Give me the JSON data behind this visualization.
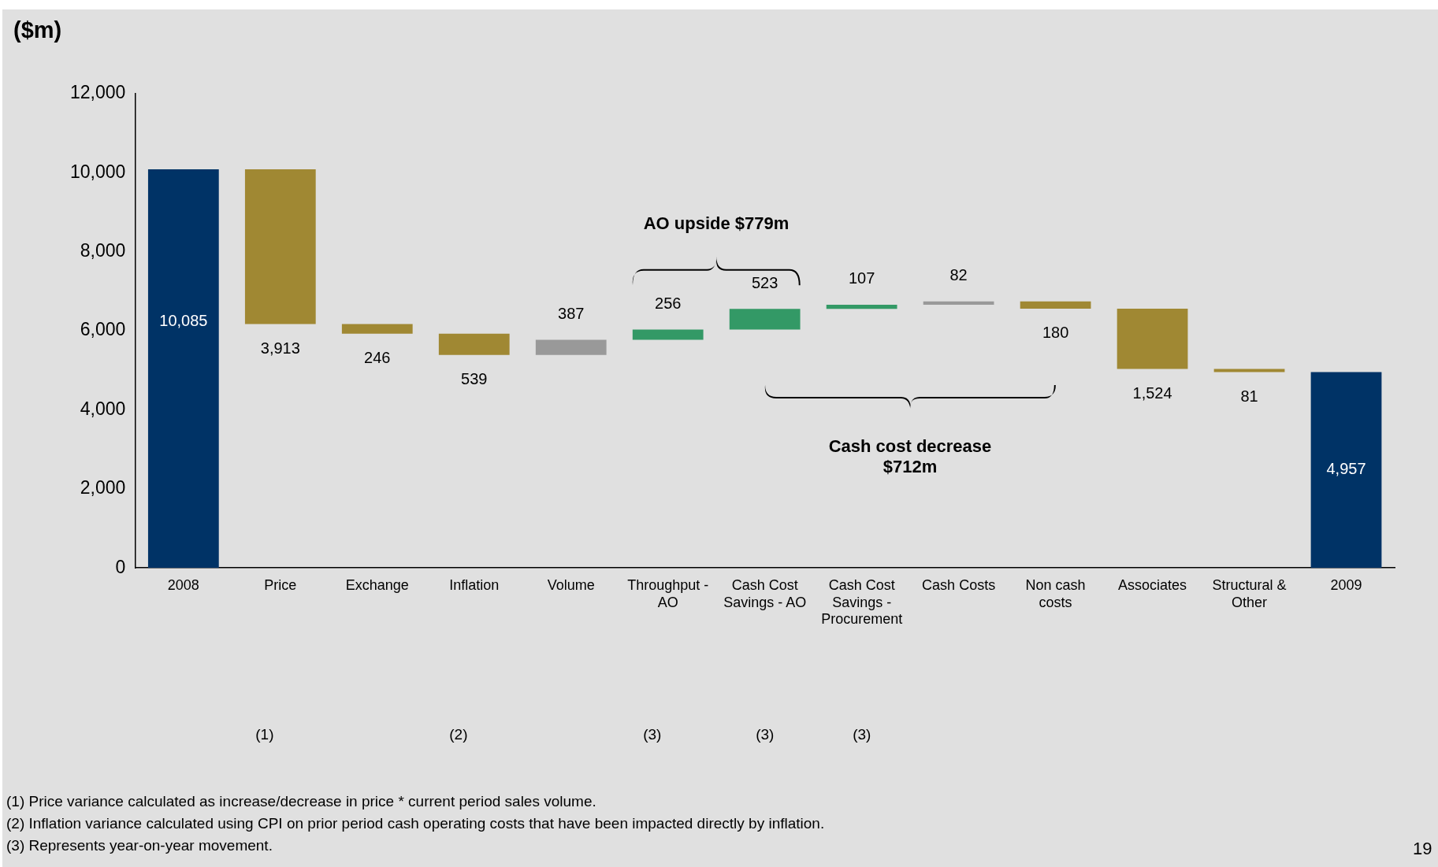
{
  "chart_data": {
    "type": "bar",
    "title": "($m)",
    "categories": [
      "2008",
      "Price",
      "Exchange",
      "Inflation",
      "Volume",
      "Throughput - AO",
      "Cash Cost Savings - AO",
      "Cash Cost Savings - Procurement",
      "Cash Costs",
      "Non cash costs",
      "Associates",
      "Structural & Other",
      "2009"
    ],
    "base": [
      0,
      10085,
      6172,
      5926,
      5387,
      5774,
      6030,
      6553,
      6660,
      6742,
      6562,
      5038,
      0
    ],
    "values": [
      10085,
      -3913,
      -246,
      -539,
      387,
      256,
      523,
      107,
      82,
      -180,
      -1524,
      -81,
      4957
    ],
    "colors": [
      "#003366",
      "#a08833",
      "#a08833",
      "#a08833",
      "#999999",
      "#339966",
      "#339966",
      "#339966",
      "#999999",
      "#a08833",
      "#a08833",
      "#a08833",
      "#003366"
    ],
    "value_labels": [
      "10,085",
      "3,913",
      "246",
      "539",
      "387",
      "256",
      "523",
      "107",
      "82",
      "180",
      "1,524",
      "81",
      "4,957"
    ],
    "ylim": [
      0,
      12000
    ],
    "yticks": [
      {
        "value": 0,
        "label": "0"
      },
      {
        "value": 2000,
        "label": "2,000"
      },
      {
        "value": 4000,
        "label": "4,000"
      },
      {
        "value": 6000,
        "label": "6,000"
      },
      {
        "value": 8000,
        "label": "8,000"
      },
      {
        "value": 10000,
        "label": "10,000"
      },
      {
        "value": 12000,
        "label": "12,000"
      }
    ],
    "grid": false,
    "legend": false,
    "annotations": [
      "AO upside $779m",
      "Cash cost decrease\n$712m",
      "(1)",
      "(2)",
      "(3)",
      "(3)",
      "(3)",
      "(1) Price variance calculated as increase/decrease in price * current period sales volume.",
      "(2) Inflation variance calculated using CPI on prior period cash operating costs that have been impacted directly by inflation.",
      "(3) Represents year-on-year movement.",
      "19"
    ]
  }
}
